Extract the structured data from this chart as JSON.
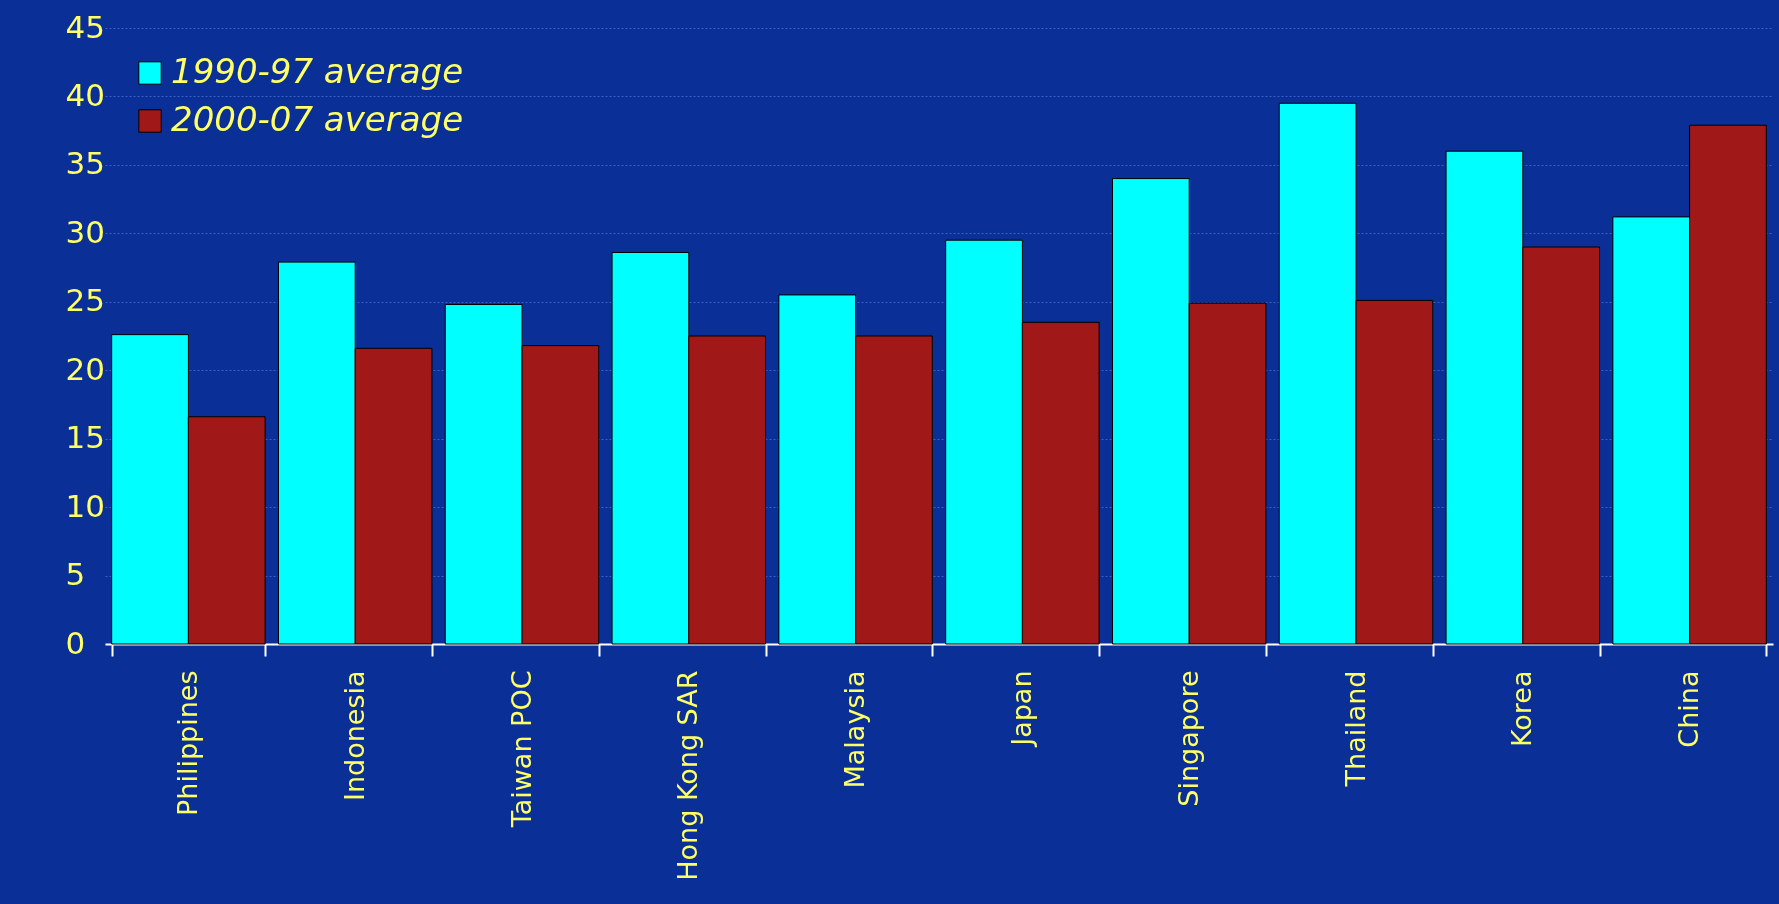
{
  "chart_data": {
    "type": "bar",
    "categories": [
      "Philippines",
      "Indonesia",
      "Taiwan POC",
      "Hong Kong SAR",
      "Malaysia",
      "Japan",
      "Singapore",
      "Thailand",
      "Korea",
      "China"
    ],
    "series": [
      {
        "name": "1990-97 average",
        "color": "#00ffff",
        "values": [
          22.6,
          27.9,
          24.8,
          28.6,
          25.5,
          29.5,
          34.0,
          39.5,
          36.0,
          31.2
        ]
      },
      {
        "name": "2000-07 average",
        "color": "#a01818",
        "values": [
          16.6,
          21.6,
          21.8,
          22.5,
          22.5,
          23.5,
          24.9,
          25.1,
          29.0,
          37.9
        ]
      }
    ],
    "ylim": [
      0,
      45
    ],
    "yticks": [
      0,
      5,
      10,
      15,
      20,
      25,
      30,
      35,
      40,
      45
    ],
    "grid": "y",
    "legend": "top left"
  }
}
